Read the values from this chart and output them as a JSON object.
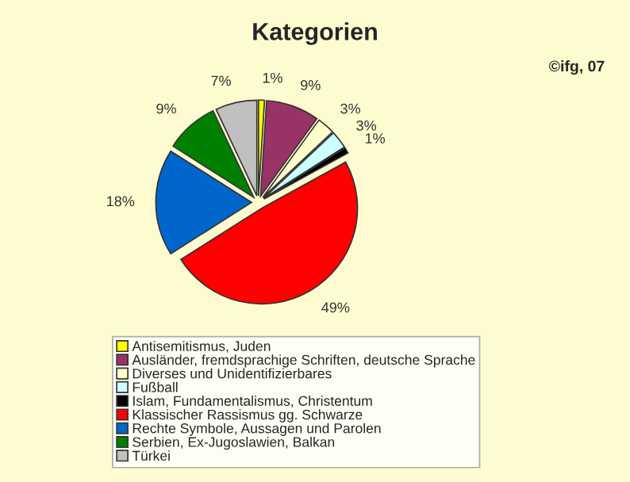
{
  "chart_data": {
    "type": "pie",
    "title": "Kategorien",
    "annotations": [
      "©ifg, 07"
    ],
    "categories": [
      "Antisemitismus, Juden",
      "Ausländer, fremdsprachige Schriften, deutsche Sprache",
      "Diverses und Unidentifizierbares",
      "Fußball",
      "Islam, Fundamentalismus, Christentum",
      "Klassischer Rassismus gg. Schwarze",
      "Rechte Symbole, Aussagen und Parolen",
      "Serbien, Ex-Jugoslawien, Balkan",
      "Türkei"
    ],
    "values": [
      1,
      9,
      3,
      3,
      1,
      49,
      18,
      9,
      7
    ],
    "value_labels": [
      "1%",
      "9%",
      "3%",
      "3%",
      "1%",
      "49%",
      "18%",
      "9%",
      "7%"
    ],
    "colors": [
      "#ffff00",
      "#993366",
      "#ffffcc",
      "#ccffff",
      "#000000",
      "#ff0000",
      "#0066cc",
      "#008000",
      "#c0c0c0"
    ],
    "legend": "bottom"
  }
}
